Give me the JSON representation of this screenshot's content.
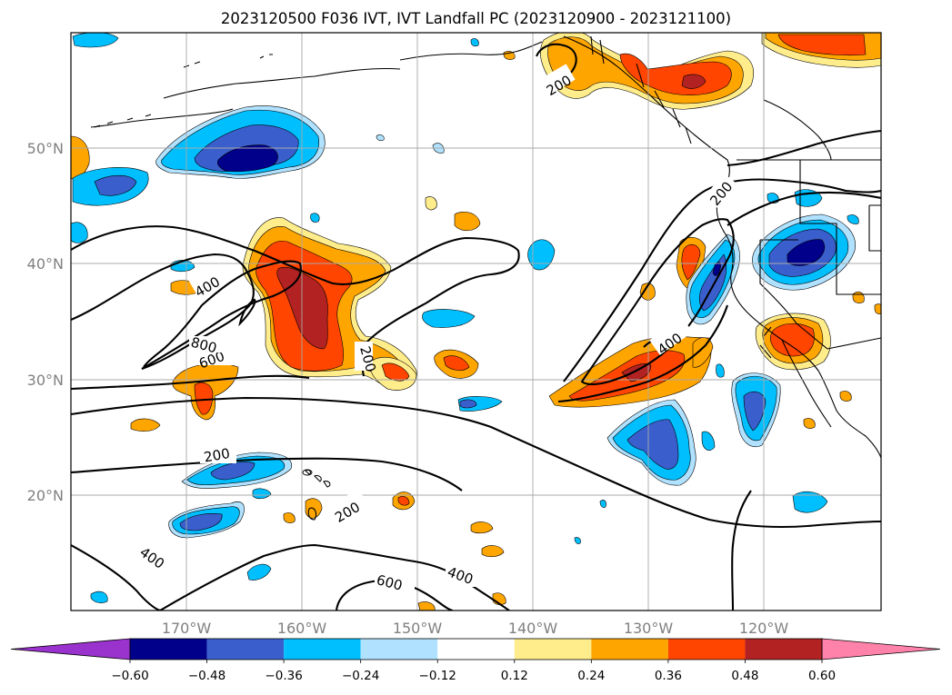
{
  "title": "2023120500 F036 IVT, IVT Landfall PC (2023120900 - 2023121100)",
  "map": {
    "lon_range": [
      -180,
      -110
    ],
    "lat_range": [
      10,
      60
    ],
    "xticks": [
      {
        "lon": -170,
        "label": "170°W"
      },
      {
        "lon": -160,
        "label": "160°W"
      },
      {
        "lon": -150,
        "label": "150°W"
      },
      {
        "lon": -140,
        "label": "140°W"
      },
      {
        "lon": -130,
        "label": "130°W"
      },
      {
        "lon": -120,
        "label": "120°W"
      }
    ],
    "yticks": [
      {
        "lat": 20,
        "label": "20°N"
      },
      {
        "lat": 30,
        "label": "30°N"
      },
      {
        "lat": 40,
        "label": "40°N"
      },
      {
        "lat": 50,
        "label": "50°N"
      }
    ],
    "grid": true,
    "contour_labels": [
      "200",
      "200",
      "200",
      "200",
      "200",
      "400",
      "400",
      "400",
      "400",
      "600",
      "600",
      "800"
    ]
  },
  "colorbar": {
    "colors": [
      "#9a32cd",
      "#00008b",
      "#3a5fcd",
      "#00bfff",
      "#b0e2ff",
      "#ffffff",
      "#ffec8b",
      "#ffa500",
      "#ff4500",
      "#b22222",
      "#ff82ab"
    ],
    "ticks": [
      "−0.60",
      "−0.48",
      "−0.36",
      "−0.24",
      "−0.12",
      "0.12",
      "0.24",
      "0.36",
      "0.48",
      "0.60"
    ]
  }
}
